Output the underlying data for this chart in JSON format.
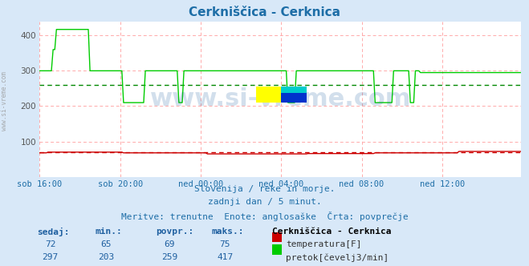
{
  "title": "Cerkniščica - Cerknica",
  "title_color": "#1e6ea7",
  "bg_color": "#d8e8f8",
  "plot_bg_color": "#ffffff",
  "grid_color": "#ffaaaa",
  "avg_color_green": "#008800",
  "avg_color_red": "#cc0000",
  "x_tick_labels": [
    "sob 16:00",
    "sob 20:00",
    "ned 00:00",
    "ned 04:00",
    "ned 08:00",
    "ned 12:00"
  ],
  "x_tick_positions": [
    0,
    48,
    96,
    144,
    192,
    240
  ],
  "total_points": 288,
  "ylim": [
    0,
    440
  ],
  "yticks": [
    100,
    200,
    300,
    400
  ],
  "temp_color": "#cc0000",
  "flow_color": "#00cc00",
  "temp_avg": 69,
  "flow_avg": 259,
  "temp_min": 65,
  "temp_max": 75,
  "flow_min": 203,
  "flow_max": 417,
  "temp_current": 72,
  "flow_current": 297,
  "watermark": "www.si-vreme.com",
  "watermark_color": "#1e5fa0",
  "subtitle1": "Slovenija / reke in morje.",
  "subtitle2": "zadnji dan / 5 minut.",
  "subtitle3": "Meritve: trenutne  Enote: anglosaške  Črta: povprečje",
  "subtitle_color": "#1e6ea7",
  "table_header_color": "#1e5fa0",
  "table_value_color": "#1e5fa0",
  "left_label": "www.si-vreme.com",
  "icon_red": "#cc0000",
  "icon_green": "#00cc00"
}
